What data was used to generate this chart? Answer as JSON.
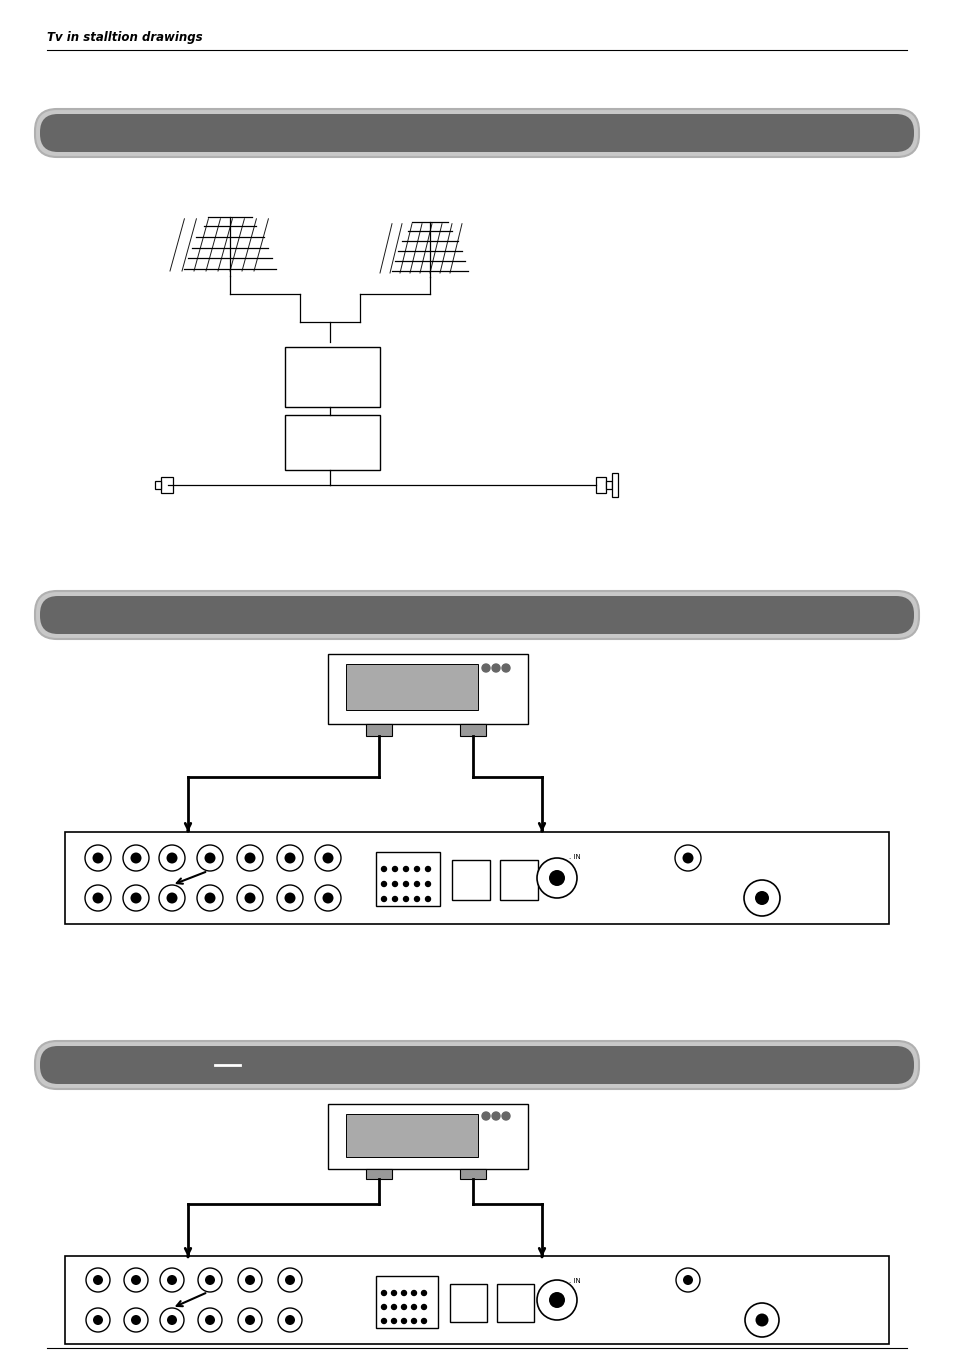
{
  "page_title": "Tv in stalltion drawings",
  "bg_color": "#ffffff",
  "header_bar_fill": "#666666",
  "header_bar_outer": "#c8c8c8",
  "header_bar_outline": "#b0b0b0"
}
